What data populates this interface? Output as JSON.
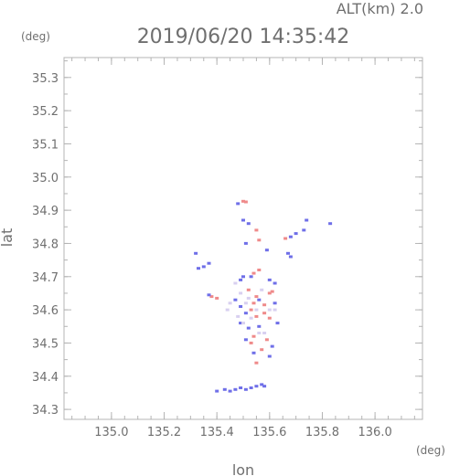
{
  "header": {
    "altitude_label": "ALT(km) 2.0",
    "timestamp": "2019/06/20 14:35:42"
  },
  "chart_data": {
    "type": "scatter",
    "title": "2019/06/20 14:35:42",
    "xlabel": "lon",
    "ylabel": "lat",
    "x_unit": "(deg)",
    "y_unit": "(deg)",
    "xlim": [
      134.82,
      136.18
    ],
    "ylim": [
      34.27,
      35.36
    ],
    "x_ticks": [
      "135.0",
      "135.2",
      "135.4",
      "135.6",
      "135.8",
      "136.0"
    ],
    "y_ticks": [
      "34.3",
      "34.4",
      "34.5",
      "34.6",
      "34.7",
      "34.8",
      "34.9",
      "35.0",
      "35.1",
      "35.2",
      "35.3"
    ],
    "grid": false,
    "colors": {
      "positive": "#ef8a8a",
      "negative": "#6f6fe8",
      "light": "#d8d0f0"
    },
    "series": [
      {
        "points": [
          [
            135.5,
            34.927
          ],
          [
            135.51,
            34.925
          ],
          [
            135.55,
            34.84
          ],
          [
            135.56,
            34.81
          ],
          [
            135.66,
            34.815
          ],
          [
            135.56,
            34.72
          ],
          [
            135.54,
            34.71
          ],
          [
            135.38,
            34.64
          ],
          [
            135.4,
            34.635
          ],
          [
            135.52,
            34.66
          ],
          [
            135.55,
            34.64
          ],
          [
            135.6,
            34.65
          ],
          [
            135.61,
            34.655
          ],
          [
            135.58,
            34.615
          ],
          [
            135.54,
            34.62
          ],
          [
            135.53,
            34.6
          ],
          [
            135.58,
            34.59
          ],
          [
            135.6,
            34.575
          ],
          [
            135.55,
            34.58
          ],
          [
            135.54,
            34.52
          ],
          [
            135.53,
            34.5
          ],
          [
            135.59,
            34.51
          ],
          [
            135.57,
            34.48
          ],
          [
            135.55,
            34.44
          ]
        ],
        "color": "#ef8a8a"
      },
      {
        "points": [
          [
            135.48,
            34.92
          ],
          [
            135.5,
            34.87
          ],
          [
            135.52,
            34.86
          ],
          [
            135.51,
            34.8
          ],
          [
            135.7,
            34.83
          ],
          [
            135.68,
            34.82
          ],
          [
            135.73,
            34.84
          ],
          [
            135.74,
            34.87
          ],
          [
            135.83,
            34.86
          ],
          [
            135.67,
            34.77
          ],
          [
            135.68,
            34.76
          ],
          [
            135.59,
            34.78
          ],
          [
            135.32,
            34.77
          ],
          [
            135.33,
            34.725
          ],
          [
            135.35,
            34.73
          ],
          [
            135.37,
            34.74
          ],
          [
            135.49,
            34.69
          ],
          [
            135.5,
            34.7
          ],
          [
            135.53,
            34.7
          ],
          [
            135.6,
            34.69
          ],
          [
            135.62,
            34.68
          ],
          [
            135.37,
            34.645
          ],
          [
            135.47,
            34.63
          ],
          [
            135.49,
            34.61
          ],
          [
            135.56,
            34.63
          ],
          [
            135.62,
            34.62
          ],
          [
            135.51,
            34.59
          ],
          [
            135.49,
            34.56
          ],
          [
            135.63,
            34.56
          ],
          [
            135.52,
            34.545
          ],
          [
            135.56,
            34.55
          ],
          [
            135.51,
            34.51
          ],
          [
            135.61,
            34.49
          ],
          [
            135.54,
            34.47
          ],
          [
            135.6,
            34.46
          ],
          [
            135.4,
            34.355
          ],
          [
            135.43,
            34.36
          ],
          [
            135.45,
            34.355
          ],
          [
            135.47,
            34.36
          ],
          [
            135.49,
            34.365
          ],
          [
            135.51,
            34.36
          ],
          [
            135.53,
            34.365
          ],
          [
            135.55,
            34.37
          ],
          [
            135.57,
            34.375
          ],
          [
            135.58,
            34.37
          ]
        ],
        "color": "#6f6fe8"
      },
      {
        "points": [
          [
            135.47,
            34.68
          ],
          [
            135.49,
            34.65
          ],
          [
            135.52,
            34.635
          ],
          [
            135.51,
            34.62
          ],
          [
            135.55,
            34.6
          ],
          [
            135.53,
            34.575
          ],
          [
            135.5,
            34.56
          ],
          [
            135.48,
            34.58
          ],
          [
            135.56,
            34.53
          ],
          [
            135.58,
            34.53
          ],
          [
            135.6,
            34.6
          ],
          [
            135.45,
            34.62
          ],
          [
            135.44,
            34.6
          ],
          [
            135.57,
            34.66
          ],
          [
            135.62,
            34.6
          ]
        ],
        "color": "#d8d0f0"
      }
    ]
  }
}
